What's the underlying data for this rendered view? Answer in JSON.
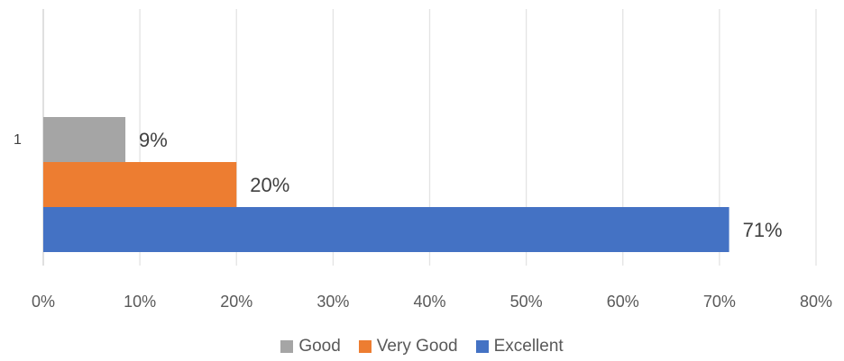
{
  "chart_data": {
    "type": "bar",
    "orientation": "horizontal",
    "categories": [
      "1"
    ],
    "series": [
      {
        "name": "Good",
        "values": [
          0.085
        ],
        "label": "9%",
        "color": "#a5a5a5"
      },
      {
        "name": "Very Good",
        "values": [
          0.2
        ],
        "label": "20%",
        "color": "#ed7d31"
      },
      {
        "name": "Excellent",
        "values": [
          0.71
        ],
        "label": "71%",
        "color": "#4472c4"
      }
    ],
    "xlim": [
      0,
      0.8
    ],
    "x_ticks": [
      {
        "value": 0,
        "label": "0%"
      },
      {
        "value": 0.1,
        "label": "10%"
      },
      {
        "value": 0.2,
        "label": "20%"
      },
      {
        "value": 0.3,
        "label": "30%"
      },
      {
        "value": 0.4,
        "label": "40%"
      },
      {
        "value": 0.5,
        "label": "50%"
      },
      {
        "value": 0.6,
        "label": "60%"
      },
      {
        "value": 0.7,
        "label": "70%"
      },
      {
        "value": 0.8,
        "label": "80%"
      }
    ],
    "grid": true,
    "legend_position": "bottom"
  }
}
